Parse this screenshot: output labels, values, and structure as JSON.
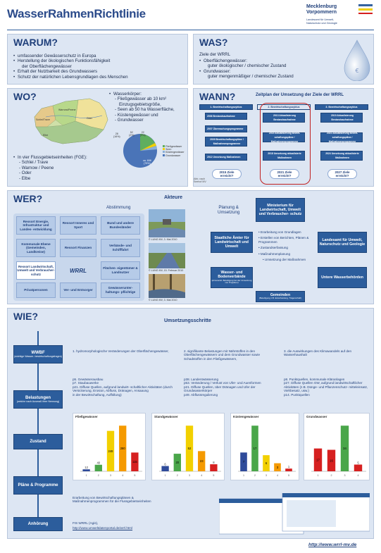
{
  "header": {
    "title": "WasserRahmenRichtlinie",
    "logo_line1": "Mecklenburg",
    "logo_line2": "Vorpommern",
    "logo_sub1": "Landesamt für Umwelt,",
    "logo_sub2": "Naturschutz und Geologie"
  },
  "warum": {
    "title": "WARUM?",
    "items": [
      "umfassender Gewässerschutz in Europa",
      "Herstellung der ökologischen Funktionsfähigkeit",
      "der Oberflächengewässer",
      "Erhalt der Nutzbarkeit des Grundwassers",
      "Schutz der natürlichen Lebensgrundlagen des Menschen"
    ]
  },
  "was": {
    "title": "WAS?",
    "subtitle": "Ziele der WRRL",
    "items": [
      "Oberflächengewässer:",
      "guter ökologischer / chemischer Zustand",
      "Grundwasser:",
      "guter mengenmäßiger / chemischer Zustand"
    ]
  },
  "wo": {
    "title": "WO?",
    "list_head": "Wasserkörper:",
    "list": [
      "- Fließgewässer ab 10 km²",
      "  Einzugsgebietsgröße,",
      "- Seen ab 50 ha Wasserfläche,",
      "- Küstengewässer und",
      "- Grundwasser"
    ],
    "map_labels": [
      "Schlei/Trave",
      "Warnow/Peene",
      "Oder",
      "Elbe"
    ],
    "fge_head": "In vier Flussgebietseinheiten (FGE):",
    "fge": [
      "- Schlei / Trave",
      "- Warnow / Peene",
      "- Oder",
      "- Elbe"
    ],
    "pie_labels": [
      "28",
      "52",
      "22",
      "ca.",
      "698"
    ],
    "pie_pct": [
      "(16%)",
      "(2%)",
      "(3%)",
      "(79%)"
    ],
    "legend": [
      "Fließgewässer",
      "Seen",
      "Küstengewässer",
      "Grundwasser"
    ]
  },
  "wann": {
    "title": "WANN?",
    "subtitle": "Zeitplan der Umsetzung der Ziele der WRRL",
    "cycles": [
      "1. Bewirtschaftungszyklus",
      "2. Bewirtschaftungszyklus",
      "3. Bewirtschaftungszyklus"
    ],
    "col1": [
      "2006  Bestandsaufnahme",
      "2007  Überwachungsprogramme",
      "2009  Bewirtschaftungspläne / Maßnahmenprogramme",
      "2012  Umsetzung Maßnahmen"
    ],
    "col2": [
      "2013  Aktualisierung Bestandsaufnahme",
      "2015  Aktualisierung Bewirt- schaftungspläne / Maßnahmenprogramme",
      "2018  Umsetzung aktualisierte Maßnahmen"
    ],
    "col3": [
      "2019  Aktualisierung Bestandsaufnahme",
      "2021  Aktualisierung Bewirt- schaftungspläne / Maßnahmenprogramme",
      "2024  Umsetzung aktualisierte Maßnahmen"
    ],
    "goals": [
      "2015 Ziele erreicht?",
      "2021 Ziele erreicht?",
      "2027 Ziele erreicht?"
    ],
    "note": "Abb. nach Seehof MV"
  },
  "wer": {
    "title": "WER?",
    "akteure": "Akteure",
    "abstimmung": "Abstimmung",
    "planung": "Planung &",
    "umsetzung": "Umsetzung",
    "left_boxes": [
      "Ressort Energie, Infrastruktur und Landes- entwicklung",
      "Ressort Inneres und Sport",
      "Bund und andere Bundesländer",
      "Kommunale Ebene (Gemeinden, Landkreise)",
      "Ressort Finanzen",
      "Verbände- und Schifffahrt",
      "Ressort Landwirtschaft, Umwelt und Verbraucher- schutz",
      "WRRL",
      "Flächen- eigentümer & Landnutzer",
      "Privatpersonen",
      "Ver- und Entsorger",
      "Gewässerunter- haltungs- pflichtige"
    ],
    "photo_caps": [
      "© LUNG MV, 3. Mai 2010",
      "© LUNG MV, 15. Februar 2010",
      "© LUNG MV, 3. Mai 2010"
    ],
    "ministerium": "Ministerium für Landwirtschaft, Umwelt und Verbraucher- schutz",
    "staatl": "Staatliche Ämter für Landwirtschaft und Umwelt",
    "landesamt": "Landesamt für Umwelt, Naturschutz und Geologie",
    "verbaende": "Wasser- und Bodenverbände",
    "verbaende_sub": "(ehrenamtl. Beteiligung bei der Umsetzung von Projekten)",
    "untere": "Untere Wasserbehörden",
    "gemeinden": "Gemeinden",
    "gemeinden_sub": "(Beteiligung z.B. Entscheidung, Trägerschaft)",
    "tasks": [
      "Erarbeitung von Grundlagen",
      "Erstellen von Berichten, Plänen & Programmen",
      "Zustandserfassung",
      "Maßnahmenplanung",
      "Umsetzung der Maßnahmen"
    ]
  },
  "wie": {
    "title": "WIE?",
    "umsetzung": "Umsetzungsschritte",
    "steps": [
      "WWBF",
      "Belastungen",
      "Zustand",
      "Pläne & Programme",
      "Anhörung"
    ],
    "steps_sub": [
      "(wichtige Wasser- bewirtschaftungsfragen)",
      "(welche nach Ausmaß ihrer Nennung)",
      "",
      "",
      ""
    ],
    "questions": [
      "1.  hydromorphologische Veränderungen der Oberflächengewässer,",
      "2.  signifikante Belastungen mit Nährstoffen in den Oberflächengewässern und dem Grundwasser sowie Schadstoffen in den Fließgewässern,",
      "3.  die Auswirkungen des Klimawandels auf den Wasserhaushalt"
    ],
    "belastung1": [
      "p5. Gewässerausbau",
      "p7. Staubauwerke",
      "p21. Diffuse Quellen, aufgrund landwirt- schaftlicher Aktivitäten (durch Versickerung, Erosion, Abfluss, Dränagen, Ansaaung",
      "in der Bewirtschaftung, Auffüllung)"
    ],
    "belastung2": [
      "p38. Landentwässerung",
      "p53. Veränderung / Verlust von Ufer- und Auenformen",
      "p21. Diffuse Quellen, über Dränagen und Ufer der Grundwasserkörper",
      "p49. Abflussregulierung"
    ],
    "belastung3": [
      "p8. Punktquellen, kommunale Kläranlagen",
      "p27. Diffuse Quellen GW, aufgrund landwirtschaftlicher Aktivitäten (z.B. Dünge- und Pflanzenschutz- mitteleinsatz, Viehbesatz, usw.)",
      "p14. Punktquellen"
    ],
    "plaene_text1": "Erarbeitung von Bewirtschaftungsplänen &",
    "plaene_text2": "Maßnahmenprogrammen für die Flussgebietseinheiten",
    "anhoerung_text": "FIS WRRL (Agis),",
    "link": "http://www.umweltdatenportal.de/wrrl.html",
    "footer_url": "http://www.wrrl-mv.de"
  },
  "charts": [
    {
      "title": "Fließgewässer",
      "type": "bar",
      "categories": [
        "1",
        "2",
        "3",
        "4",
        "5"
      ],
      "values": [
        12,
        40,
        248,
        280,
        115
      ],
      "labels": [
        "12",
        "40",
        "248",
        "280",
        "115"
      ],
      "colors": [
        "#2f4b9a",
        "#4aa64a",
        "#f2d000",
        "#f59a00",
        "#d62020"
      ]
    },
    {
      "title": "Standgewässer",
      "type": "bar",
      "categories": [
        "1",
        "2",
        "3",
        "4",
        "5"
      ],
      "values": [
        6,
        20,
        52,
        23,
        8
      ],
      "labels": [
        "6",
        "20",
        "52",
        "23",
        "8"
      ],
      "colors": [
        "#2f4b9a",
        "#4aa64a",
        "#f2d000",
        "#f59a00",
        "#d62020"
      ]
    },
    {
      "title": "Küstengewässer",
      "type": "bar",
      "categories": [
        "1",
        "2",
        "3",
        "4",
        "5"
      ],
      "values": [
        7,
        17,
        6,
        3,
        1
      ],
      "labels": [
        "7",
        "17",
        "6",
        "3",
        "1"
      ],
      "colors": [
        "#2f4b9a",
        "#4aa64a",
        "#f2d000",
        "#f59a00",
        "#d62020"
      ]
    },
    {
      "title": "Grundwasser",
      "type": "bar",
      "categories": [
        "1",
        "2",
        "3",
        "4"
      ],
      "values": [
        17,
        16,
        34,
        5
      ],
      "labels": [
        "17",
        "16",
        "34",
        "5"
      ],
      "colors": [
        "#d62020",
        "#d62020",
        "#4aa64a",
        "#d62020"
      ]
    }
  ]
}
